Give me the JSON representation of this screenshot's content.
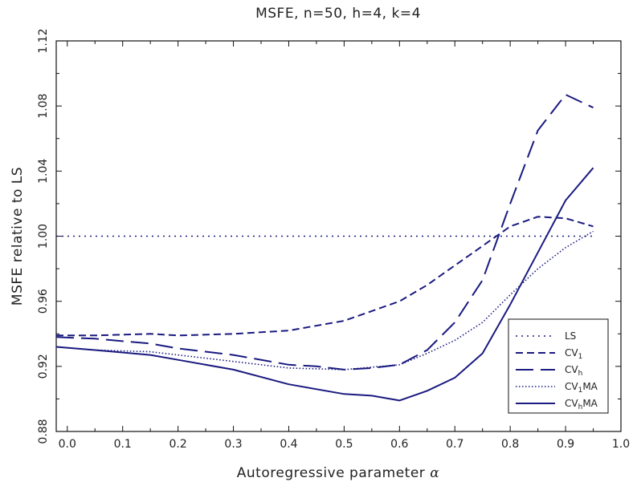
{
  "chart_data": {
    "type": "line",
    "title": "MSFE, n=50, h=4, k=4",
    "xlabel_text": "Autoregressive parameter ",
    "xlabel_symbol": "α",
    "ylabel": "MSFE relative to LS",
    "xlim": [
      -0.02,
      1.0
    ],
    "ylim": [
      0.88,
      1.12
    ],
    "x_ticks": [
      0.0,
      0.1,
      0.2,
      0.3,
      0.4,
      0.5,
      0.6,
      0.7,
      0.8,
      0.9,
      1.0
    ],
    "x_tick_labels": [
      "0.0",
      "0.1",
      "0.2",
      "0.3",
      "0.4",
      "0.5",
      "0.6",
      "0.7",
      "0.8",
      "0.9",
      "1.0"
    ],
    "y_ticks": [
      0.88,
      0.92,
      0.96,
      1.0,
      1.04,
      1.08,
      1.12
    ],
    "y_tick_labels": [
      "0.88",
      "0.92",
      "0.96",
      "1.00",
      "1.04",
      "1.08",
      "1.12"
    ],
    "grid": false,
    "legend_position": "bottom-right",
    "line_color": "#1a1a80",
    "series": [
      {
        "name": "LS",
        "sub": "",
        "suffix": "",
        "style": "dotted",
        "x": [
          -0.02,
          0.95
        ],
        "y": [
          1.0,
          1.0
        ]
      },
      {
        "name": "CV",
        "sub": "1",
        "suffix": "",
        "style": "short-dash",
        "x": [
          -0.02,
          0.05,
          0.15,
          0.2,
          0.3,
          0.4,
          0.5,
          0.6,
          0.65,
          0.7,
          0.75,
          0.8,
          0.85,
          0.9,
          0.95
        ],
        "y": [
          0.939,
          0.939,
          0.94,
          0.939,
          0.94,
          0.942,
          0.948,
          0.96,
          0.97,
          0.982,
          0.994,
          1.006,
          1.012,
          1.011,
          1.006
        ]
      },
      {
        "name": "CV",
        "sub": "h",
        "suffix": "",
        "style": "long-dash",
        "x": [
          -0.02,
          0.05,
          0.15,
          0.2,
          0.3,
          0.4,
          0.45,
          0.5,
          0.55,
          0.6,
          0.65,
          0.7,
          0.75,
          0.8,
          0.85,
          0.9,
          0.95
        ],
        "y": [
          0.938,
          0.937,
          0.934,
          0.931,
          0.927,
          0.921,
          0.92,
          0.918,
          0.919,
          0.921,
          0.93,
          0.947,
          0.973,
          1.02,
          1.065,
          1.087,
          1.079
        ]
      },
      {
        "name": "CV",
        "sub": "1",
        "suffix": "MA",
        "style": "dense-dotted",
        "x": [
          -0.02,
          0.05,
          0.15,
          0.2,
          0.3,
          0.4,
          0.5,
          0.6,
          0.65,
          0.7,
          0.75,
          0.8,
          0.85,
          0.9,
          0.95
        ],
        "y": [
          0.932,
          0.93,
          0.929,
          0.927,
          0.923,
          0.919,
          0.918,
          0.921,
          0.928,
          0.936,
          0.947,
          0.964,
          0.98,
          0.993,
          1.003
        ]
      },
      {
        "name": "CV",
        "sub": "h",
        "suffix": "MA",
        "style": "solid",
        "x": [
          -0.02,
          0.05,
          0.15,
          0.2,
          0.3,
          0.4,
          0.5,
          0.55,
          0.6,
          0.65,
          0.7,
          0.75,
          0.8,
          0.85,
          0.9,
          0.95
        ],
        "y": [
          0.932,
          0.93,
          0.927,
          0.924,
          0.918,
          0.909,
          0.903,
          0.902,
          0.899,
          0.905,
          0.913,
          0.928,
          0.958,
          0.99,
          1.022,
          1.042
        ]
      }
    ]
  }
}
